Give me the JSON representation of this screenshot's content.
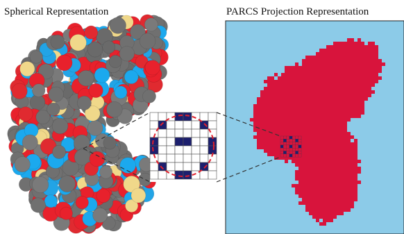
{
  "left_panel": {
    "title": "Spherical Representation"
  },
  "right_panel": {
    "title": "PARCS Projection Representation"
  }
}
